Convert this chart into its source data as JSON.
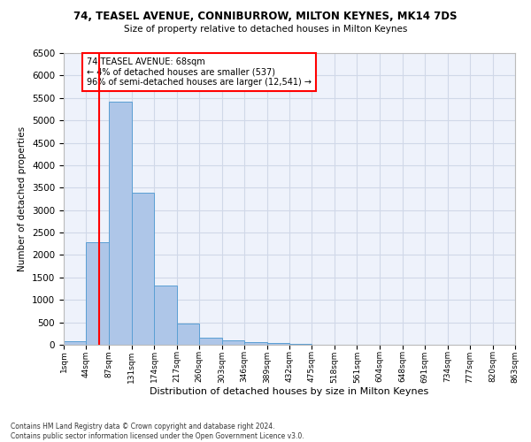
{
  "title1": "74, TEASEL AVENUE, CONNIBURROW, MILTON KEYNES, MK14 7DS",
  "title2": "Size of property relative to detached houses in Milton Keynes",
  "xlabel": "Distribution of detached houses by size in Milton Keynes",
  "ylabel": "Number of detached properties",
  "footnote": "Contains HM Land Registry data © Crown copyright and database right 2024.\nContains public sector information licensed under the Open Government Licence v3.0.",
  "bin_edges": [
    1,
    44,
    87,
    131,
    174,
    217,
    260,
    303,
    346,
    389,
    432,
    475,
    518,
    561,
    604,
    648,
    691,
    734,
    777,
    820,
    863
  ],
  "bin_labels": [
    "1sqm",
    "44sqm",
    "87sqm",
    "131sqm",
    "174sqm",
    "217sqm",
    "260sqm",
    "303sqm",
    "346sqm",
    "389sqm",
    "432sqm",
    "475sqm",
    "518sqm",
    "561sqm",
    "604sqm",
    "648sqm",
    "691sqm",
    "734sqm",
    "777sqm",
    "820sqm",
    "863sqm"
  ],
  "bar_values": [
    80,
    2280,
    5420,
    3380,
    1310,
    480,
    165,
    90,
    60,
    30,
    10,
    5,
    5,
    0,
    0,
    0,
    0,
    0,
    0,
    0
  ],
  "bar_color": "#aec6e8",
  "bar_edge_color": "#5a9fd4",
  "property_size": 68,
  "vline_x": 68,
  "vline_color": "red",
  "annotation_text": "74 TEASEL AVENUE: 68sqm\n← 4% of detached houses are smaller (537)\n96% of semi-detached houses are larger (12,541) →",
  "annotation_box_color": "white",
  "annotation_box_edgecolor": "red",
  "ylim": [
    0,
    6500
  ],
  "yticks": [
    0,
    500,
    1000,
    1500,
    2000,
    2500,
    3000,
    3500,
    4000,
    4500,
    5000,
    5500,
    6000,
    6500
  ],
  "grid_color": "#d0d8e8",
  "background_color": "white",
  "axes_bg_color": "#eef2fb"
}
